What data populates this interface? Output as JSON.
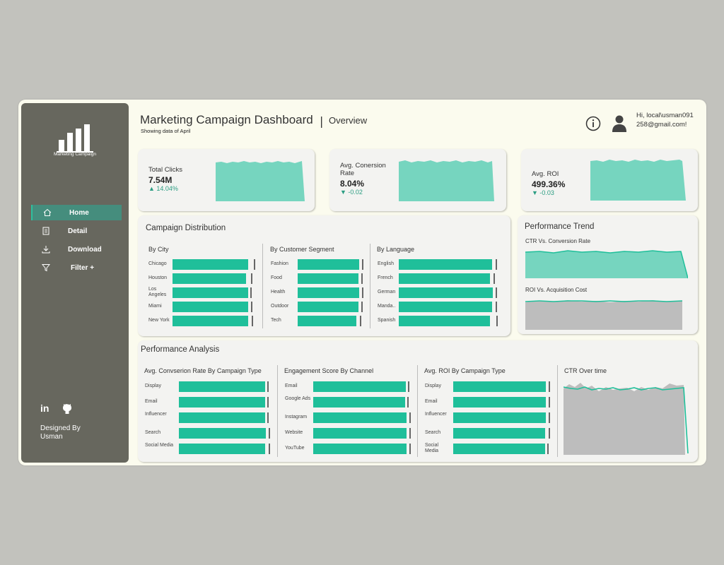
{
  "colors": {
    "accent": "#1fbf9a",
    "sidebar": "#67675e",
    "page": "#fbfbee",
    "area": "#76d5bf",
    "gray": "#bdbdbd"
  },
  "sidebar": {
    "logo_text": "Marketing Campaign",
    "nav": [
      {
        "label": "Home",
        "icon": "home-icon",
        "active": true
      },
      {
        "label": "Detail",
        "icon": "document-icon",
        "active": false
      },
      {
        "label": "Download",
        "icon": "download-icon",
        "active": false
      },
      {
        "label": "Filter +",
        "icon": "filter-icon",
        "active": false
      }
    ],
    "social_icons": [
      "linkedin-icon",
      "github-icon"
    ],
    "designed_by": "Designed By Usman"
  },
  "header": {
    "title": "Marketing Campaign Dashboard",
    "separator": "|",
    "subtitle": "Overview",
    "note": "Showing data of April",
    "user_text": "Hi, local\\usman091258@gmail.com!"
  },
  "kpis": [
    {
      "label": "Total Clicks",
      "value": "7.54M",
      "change": "▲ 14.04%"
    },
    {
      "label": "Avg. Conersion Rate",
      "value": "8.04%",
      "change": "▼ -0.02"
    },
    {
      "label": "Avg. ROI",
      "value": "499.36%",
      "change": "▼ -0.03"
    }
  ],
  "campaign_distribution": {
    "title": "Campaign Distribution",
    "groups": [
      {
        "title": "By City",
        "items": [
          "Chicago",
          "Houston",
          "Los Angeles",
          "Miami",
          "New York"
        ],
        "values": [
          0.93,
          0.9,
          0.93,
          0.93,
          0.93
        ],
        "targets": [
          0.98,
          0.95,
          0.94,
          0.95,
          0.96
        ]
      },
      {
        "title": "By Customer Segment",
        "items": [
          "Fashion",
          "Food",
          "Health",
          "Outdoor",
          "Tech"
        ],
        "values": [
          0.97,
          0.96,
          0.97,
          0.96,
          0.92
        ],
        "targets": [
          0.99,
          0.98,
          0.99,
          0.98,
          0.96
        ]
      },
      {
        "title": "By Language",
        "items": [
          "English",
          "French",
          "German",
          "Manda..",
          "Spanish"
        ],
        "values": [
          0.97,
          0.95,
          0.98,
          0.97,
          0.95
        ],
        "targets": [
          0.99,
          0.97,
          0.99,
          0.99,
          1.0
        ]
      }
    ]
  },
  "performance_trend": {
    "title": "Performance Trend",
    "charts": [
      {
        "title": "CTR Vs. Conversion Rate"
      },
      {
        "title": "ROI Vs. Acquisition Cost"
      }
    ]
  },
  "performance_analysis": {
    "title": "Performance Analysis",
    "groups": [
      {
        "title": "Avg. Convserion Rate By Campaign Type",
        "items": [
          "Display",
          "Email",
          "Influencer",
          "Search",
          "Social Media"
        ],
        "values": [
          0.97,
          0.97,
          0.97,
          0.98,
          0.97
        ],
        "targets": [
          0.98,
          0.98,
          0.98,
          0.99,
          0.99
        ]
      },
      {
        "title": "Engagement Score By Channel",
        "items": [
          "Email",
          "Google Ads",
          "Instagram",
          "Website",
          "YouTube"
        ],
        "values": [
          0.97,
          0.96,
          0.98,
          0.98,
          0.98
        ],
        "targets": [
          0.98,
          0.97,
          0.99,
          0.99,
          0.99
        ]
      },
      {
        "title": "Avg. ROI By Campaign Type",
        "items": [
          "Display",
          "Email",
          "Influencer",
          "Search",
          "Social Media"
        ],
        "values": [
          0.98,
          0.98,
          0.98,
          0.97,
          0.97
        ],
        "targets": [
          0.99,
          0.99,
          0.99,
          0.99,
          0.98
        ]
      }
    ],
    "ctr_chart": {
      "title": "CTR Over time"
    }
  }
}
